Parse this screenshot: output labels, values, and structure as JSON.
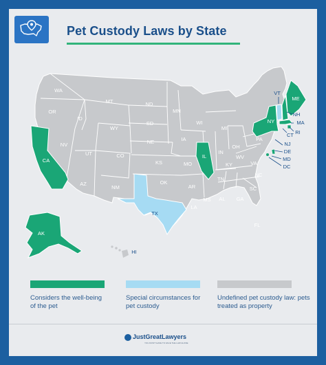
{
  "title": "Pet Custody Laws by State",
  "colors": {
    "frame": "#1c5fa0",
    "panel": "#e9ebee",
    "well_being": "#1aa676",
    "special": "#a6dbf3",
    "undefined": "#c7c9cc",
    "label_dark": "#1a4f8a"
  },
  "states": {
    "WA": "WA",
    "OR": "OR",
    "CA": "CA",
    "NV": "NV",
    "ID": "ID",
    "MT": "MT",
    "WY": "WY",
    "UT": "UT",
    "AZ": "AZ",
    "CO": "CO",
    "NM": "NM",
    "ND": "ND",
    "SD": "SD",
    "NE": "NE",
    "KS": "KS",
    "OK": "OK",
    "TX": "TX",
    "MN": "MN",
    "IA": "IA",
    "MO": "MO",
    "AR": "AR",
    "LA": "LA",
    "WI": "WI",
    "IL": "IL",
    "MI": "MI",
    "IN": "IN",
    "OH": "OH",
    "KY": "KY",
    "TN": "TN",
    "MS": "MS",
    "AL": "AL",
    "GA": "GA",
    "FL": "FL",
    "SC": "SC",
    "NC": "NC",
    "VA": "VA",
    "WV": "WV",
    "PA": "PA",
    "NY": "NY",
    "VT": "VT",
    "NH": "NH",
    "ME": "ME",
    "MA": "MA",
    "RI": "RI",
    "CT": "CT",
    "NJ": "NJ",
    "DE": "DE",
    "MD": "MD",
    "DC": "DC",
    "AK": "AK",
    "HI": "HI"
  },
  "legend": {
    "well_being": "Considers the well-being of the pet",
    "special": "Special circumstances for pet custody",
    "undefined": "Undefined pet custody law: pets treated as property"
  },
  "brand": {
    "name": "JustGreatLawyers",
    "tagline": "YOU DON'T HAVE TO FACE THE LAW ALONE"
  }
}
